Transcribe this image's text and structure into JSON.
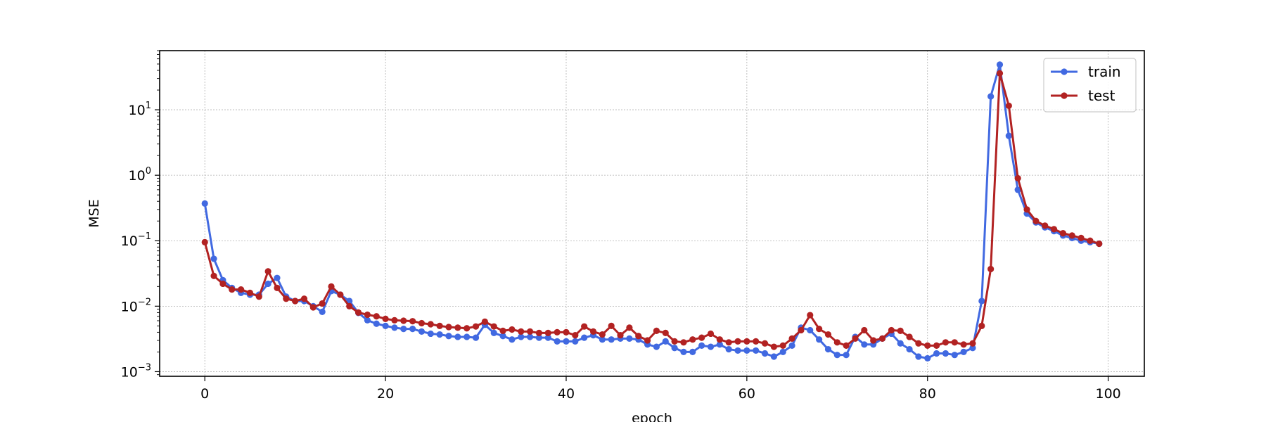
{
  "chart_data": {
    "type": "line",
    "title": "",
    "xlabel": "epoch",
    "ylabel": "MSE",
    "xlim": [
      -5,
      104
    ],
    "ylim": [
      0.00085,
      80
    ],
    "yscale": "log",
    "grid": true,
    "legend_position": "top-right",
    "xticks": [
      0,
      20,
      40,
      60,
      80,
      100
    ],
    "xtick_labels": [
      "0",
      "20",
      "40",
      "60",
      "80",
      "100"
    ],
    "yticks": [
      0.001,
      0.01,
      0.1,
      1,
      10
    ],
    "ytick_labels": [
      {
        "base": "10",
        "exp": "−3"
      },
      {
        "base": "10",
        "exp": "−2"
      },
      {
        "base": "10",
        "exp": "−1"
      },
      {
        "base": "10",
        "exp": "0"
      },
      {
        "base": "10",
        "exp": "1"
      }
    ],
    "series": [
      {
        "name": "train",
        "color": "#4169e1",
        "values": [
          0.37,
          0.053,
          0.025,
          0.019,
          0.016,
          0.015,
          0.015,
          0.022,
          0.027,
          0.014,
          0.012,
          0.012,
          0.01,
          0.0082,
          0.017,
          0.015,
          0.012,
          0.0079,
          0.0061,
          0.0054,
          0.005,
          0.0047,
          0.0045,
          0.0045,
          0.0041,
          0.0038,
          0.0037,
          0.0035,
          0.0034,
          0.0034,
          0.0033,
          0.0052,
          0.0039,
          0.0035,
          0.0031,
          0.0034,
          0.0034,
          0.0033,
          0.0033,
          0.0029,
          0.0029,
          0.0029,
          0.0033,
          0.0036,
          0.0031,
          0.0031,
          0.0032,
          0.0032,
          0.0031,
          0.0026,
          0.0024,
          0.0029,
          0.0023,
          0.002,
          0.002,
          0.0025,
          0.0024,
          0.0026,
          0.0022,
          0.0021,
          0.0021,
          0.0021,
          0.0019,
          0.0017,
          0.002,
          0.0025,
          0.0047,
          0.0043,
          0.0031,
          0.0022,
          0.0018,
          0.0018,
          0.0034,
          0.0026,
          0.0026,
          0.0032,
          0.0038,
          0.0027,
          0.0022,
          0.0017,
          0.0016,
          0.0019,
          0.0019,
          0.0018,
          0.002,
          0.0023,
          0.012,
          16,
          49,
          4.0,
          0.6,
          0.26,
          0.19,
          0.16,
          0.14,
          0.12,
          0.11,
          0.1,
          0.095,
          0.09
        ]
      },
      {
        "name": "test",
        "color": "#b22222",
        "values": [
          0.095,
          0.029,
          0.022,
          0.018,
          0.018,
          0.016,
          0.014,
          0.034,
          0.019,
          0.013,
          0.012,
          0.013,
          0.0096,
          0.011,
          0.02,
          0.015,
          0.01,
          0.008,
          0.0074,
          0.007,
          0.0064,
          0.0061,
          0.006,
          0.0059,
          0.0055,
          0.0053,
          0.005,
          0.0048,
          0.0047,
          0.0046,
          0.0049,
          0.0058,
          0.0049,
          0.0042,
          0.0044,
          0.0041,
          0.0041,
          0.0039,
          0.0039,
          0.004,
          0.004,
          0.0036,
          0.0049,
          0.0041,
          0.0037,
          0.005,
          0.0036,
          0.0047,
          0.0035,
          0.003,
          0.0042,
          0.0039,
          0.0029,
          0.0028,
          0.0031,
          0.0033,
          0.0038,
          0.0031,
          0.0028,
          0.0029,
          0.0029,
          0.0029,
          0.0027,
          0.0024,
          0.0025,
          0.0032,
          0.0043,
          0.0073,
          0.0045,
          0.0037,
          0.0028,
          0.0025,
          0.0032,
          0.0043,
          0.003,
          0.0032,
          0.0043,
          0.0042,
          0.0034,
          0.0027,
          0.0025,
          0.0025,
          0.0028,
          0.0028,
          0.0026,
          0.0027,
          0.005,
          0.037,
          36,
          11.5,
          0.9,
          0.3,
          0.2,
          0.17,
          0.15,
          0.13,
          0.12,
          0.11,
          0.1,
          0.09
        ]
      }
    ]
  }
}
